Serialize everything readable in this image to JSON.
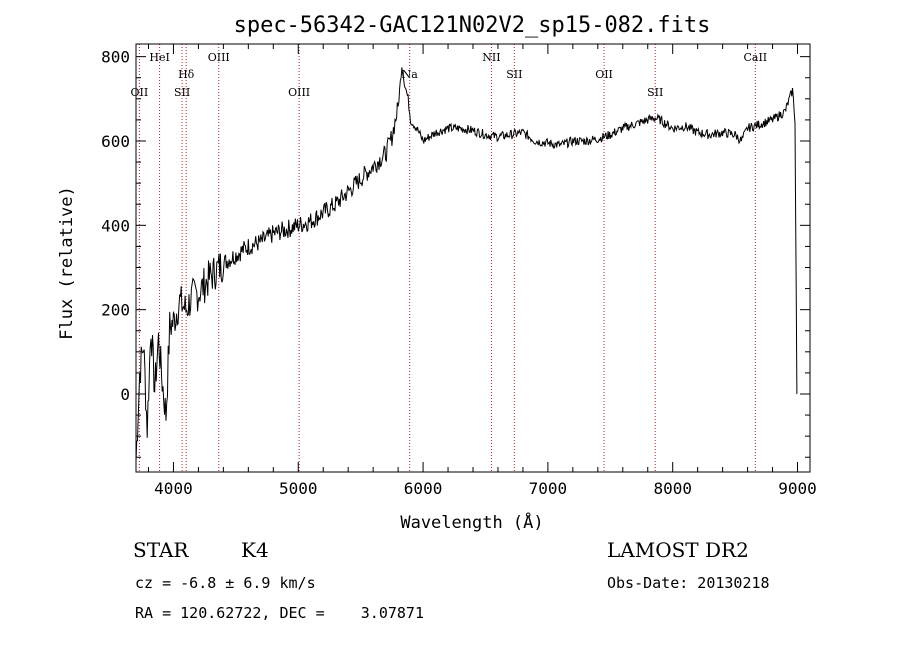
{
  "chart_data": {
    "type": "line",
    "title": "spec-56342-GAC121N02V2_sp15-082.fits",
    "xlabel": "Wavelength (Å)",
    "ylabel": "Flux (relative)",
    "xlim": [
      3700,
      9100
    ],
    "ylim": [
      -185,
      830
    ],
    "xticks": [
      4000,
      5000,
      6000,
      7000,
      8000,
      9000
    ],
    "yticks": [
      0,
      200,
      400,
      600,
      800
    ],
    "grid": false,
    "emission_lines": [
      {
        "label": "OII",
        "x": 3727,
        "row": 3
      },
      {
        "label": "HeI",
        "x": 3889,
        "row": 1
      },
      {
        "label": "SII",
        "x": 4069,
        "row": 3
      },
      {
        "label": "Hδ",
        "x": 4102,
        "row": 2
      },
      {
        "label": "OIII",
        "x": 4363,
        "row": 1
      },
      {
        "label": "OIII",
        "x": 5007,
        "row": 3
      },
      {
        "label": "Na",
        "x": 5893,
        "row": 2
      },
      {
        "label": "NII",
        "x": 6548,
        "row": 1
      },
      {
        "label": "SII",
        "x": 6731,
        "row": 2
      },
      {
        "label": "OII",
        "x": 7450,
        "row": 2
      },
      {
        "label": "SII",
        "x": 7860,
        "row": 3
      },
      {
        "label": "CaII",
        "x": 8662,
        "row": 1
      }
    ],
    "series": [
      {
        "x": [
          3700,
          3730,
          3760,
          3790,
          3820,
          3850,
          3880,
          3910,
          3940,
          3970,
          4000,
          4050,
          4100,
          4150,
          4200,
          4250,
          4300,
          4400,
          4500,
          4600,
          4700,
          4800,
          4900,
          5000,
          5100,
          5200,
          5300,
          5400,
          5500,
          5600,
          5700,
          5750,
          5800,
          5830,
          5850,
          5880,
          5900,
          5950,
          6000,
          6100,
          6200,
          6300,
          6400,
          6500,
          6600,
          6700,
          6800,
          6900,
          7000,
          7100,
          7200,
          7300,
          7400,
          7500,
          7600,
          7700,
          7800,
          7850,
          7900,
          8000,
          8100,
          8200,
          8300,
          8400,
          8500,
          8550,
          8600,
          8700,
          8800,
          8900,
          8960,
          8980,
          8995
        ],
        "values": [
          -160,
          50,
          120,
          -80,
          160,
          10,
          130,
          30,
          -50,
          160,
          170,
          220,
          200,
          230,
          240,
          260,
          280,
          310,
          330,
          350,
          360,
          380,
          390,
          400,
          410,
          430,
          450,
          480,
          510,
          540,
          570,
          610,
          680,
          780,
          740,
          700,
          650,
          630,
          600,
          620,
          630,
          630,
          625,
          615,
          610,
          615,
          620,
          600,
          595,
          590,
          600,
          600,
          605,
          615,
          630,
          640,
          650,
          655,
          650,
          630,
          635,
          620,
          615,
          620,
          615,
          600,
          630,
          640,
          650,
          670,
          720,
          650,
          0
        ]
      }
    ]
  },
  "info": {
    "class_label": "STAR",
    "subclass": "K4",
    "velocity": "cz = -6.8 ± 6.9 km/s",
    "coords": "RA = 120.62722, DEC =    3.07871",
    "survey": "LAMOST DR2",
    "obs_date": "Obs-Date: 20130218"
  }
}
